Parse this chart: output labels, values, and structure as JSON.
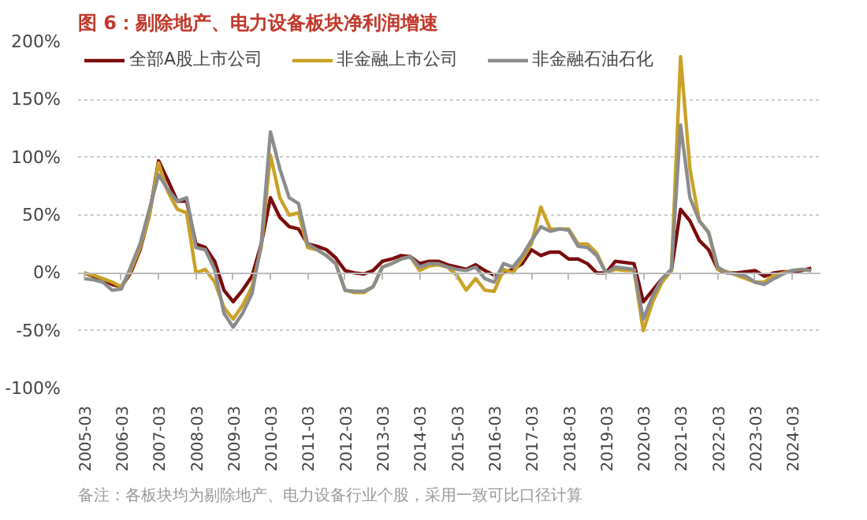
{
  "chart_data": {
    "type": "line",
    "title": "图 6：剔除地产、电力设备板块净利润增速",
    "annotations": [
      "备注：各板块均为剔除地产、电力设备行业个股，采用一致可比口径计算"
    ],
    "x": [
      "2005-03",
      "2005-06",
      "2005-09",
      "2005-12",
      "2006-03",
      "2006-06",
      "2006-09",
      "2006-12",
      "2007-03",
      "2007-06",
      "2007-09",
      "2007-12",
      "2008-03",
      "2008-06",
      "2008-09",
      "2008-12",
      "2009-03",
      "2009-06",
      "2009-09",
      "2009-12",
      "2010-03",
      "2010-06",
      "2010-09",
      "2010-12",
      "2011-03",
      "2011-06",
      "2011-09",
      "2011-12",
      "2012-03",
      "2012-06",
      "2012-09",
      "2012-12",
      "2013-03",
      "2013-06",
      "2013-09",
      "2013-12",
      "2014-03",
      "2014-06",
      "2014-09",
      "2014-12",
      "2015-03",
      "2015-06",
      "2015-09",
      "2015-12",
      "2016-03",
      "2016-06",
      "2016-09",
      "2016-12",
      "2017-03",
      "2017-06",
      "2017-09",
      "2017-12",
      "2018-03",
      "2018-06",
      "2018-09",
      "2018-12",
      "2019-03",
      "2019-06",
      "2019-09",
      "2019-12",
      "2020-03",
      "2020-06",
      "2020-09",
      "2020-12",
      "2021-03",
      "2021-06",
      "2021-09",
      "2021-12",
      "2022-03",
      "2022-06",
      "2022-09",
      "2022-12",
      "2023-03",
      "2023-06",
      "2023-09",
      "2023-12",
      "2024-03",
      "2024-06",
      "2024-09"
    ],
    "series": [
      {
        "name": "全部A股上市公司",
        "color": "#7b0c0c",
        "values": [
          0,
          -3,
          -6,
          -10,
          -12,
          0,
          20,
          50,
          97,
          80,
          62,
          62,
          25,
          22,
          10,
          -15,
          -25,
          -15,
          -3,
          25,
          65,
          48,
          40,
          38,
          25,
          23,
          20,
          13,
          2,
          0,
          -1,
          2,
          10,
          12,
          15,
          14,
          8,
          10,
          10,
          7,
          5,
          3,
          7,
          2,
          -2,
          0,
          3,
          8,
          20,
          15,
          18,
          18,
          12,
          12,
          8,
          0,
          0,
          10,
          9,
          8,
          -25,
          -15,
          -5,
          2,
          55,
          45,
          28,
          20,
          3,
          0,
          0,
          1,
          2,
          -3,
          0,
          1,
          1,
          2,
          4
        ]
      },
      {
        "name": "非金融上市公司",
        "color": "#c9a227",
        "values": [
          0,
          -2,
          -5,
          -8,
          -12,
          2,
          22,
          50,
          95,
          70,
          55,
          52,
          0,
          3,
          -8,
          -30,
          -40,
          -28,
          -12,
          22,
          102,
          65,
          50,
          52,
          22,
          20,
          15,
          8,
          -15,
          -17,
          -17,
          -12,
          5,
          8,
          12,
          14,
          2,
          6,
          7,
          5,
          -2,
          -15,
          -5,
          -15,
          -16,
          3,
          0,
          12,
          25,
          57,
          38,
          38,
          38,
          25,
          25,
          17,
          0,
          3,
          2,
          2,
          -50,
          -25,
          -8,
          2,
          187,
          90,
          45,
          35,
          3,
          1,
          -2,
          -5,
          -8,
          -8,
          -2,
          0,
          2,
          3,
          2
        ]
      },
      {
        "name": "非金融石油石化",
        "color": "#8c8c8c",
        "values": [
          -5,
          -6,
          -8,
          -15,
          -14,
          5,
          25,
          55,
          85,
          72,
          62,
          65,
          22,
          20,
          3,
          -35,
          -47,
          -35,
          -18,
          25,
          122,
          90,
          65,
          60,
          25,
          20,
          15,
          8,
          -15,
          -16,
          -16,
          -12,
          5,
          8,
          12,
          14,
          5,
          8,
          8,
          5,
          3,
          2,
          5,
          -5,
          -8,
          8,
          5,
          15,
          28,
          40,
          36,
          38,
          37,
          23,
          22,
          15,
          0,
          5,
          4,
          3,
          -40,
          -20,
          -5,
          3,
          128,
          65,
          45,
          35,
          5,
          0,
          -1,
          -3,
          -8,
          -10,
          -5,
          -1,
          2,
          3,
          2
        ]
      }
    ],
    "xlim": [
      "2005-01",
      "2024-12"
    ],
    "xticks": [
      "2005-03",
      "2006-03",
      "2007-03",
      "2008-03",
      "2009-03",
      "2010-03",
      "2011-03",
      "2012-03",
      "2013-03",
      "2014-03",
      "2015-03",
      "2016-03",
      "2017-03",
      "2018-03",
      "2019-03",
      "2020-03",
      "2021-03",
      "2022-03",
      "2023-03",
      "2024-03"
    ],
    "ylim": [
      -100,
      200
    ],
    "yticks": [
      {
        "value": -100,
        "label": "-100%"
      },
      {
        "value": -50,
        "label": "-50%"
      },
      {
        "value": 0,
        "label": "0%"
      },
      {
        "value": 50,
        "label": "50%"
      },
      {
        "value": 100,
        "label": "100%"
      },
      {
        "value": 150,
        "label": "150%"
      },
      {
        "value": 200,
        "label": "200%"
      }
    ],
    "grid": "y",
    "legend": "top",
    "line_style": "solid",
    "marker": "none"
  }
}
